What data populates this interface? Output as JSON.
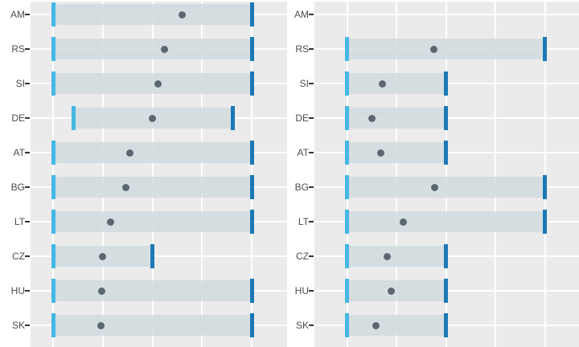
{
  "chart_data": {
    "type": "bar",
    "variant": "dumbbell-range",
    "orientation": "horizontal",
    "facets": 2,
    "categories": [
      "AM",
      "RS",
      "SI",
      "DE",
      "AT",
      "BG",
      "LT",
      "CZ",
      "HU",
      "SK"
    ],
    "axis": {
      "gridline_values": [
        0,
        25,
        50,
        75,
        100
      ],
      "range": [
        0,
        100
      ],
      "tick_labels_visible": false,
      "grid": "on",
      "note": "x-axis tick labels are cropped out of the screenshot; values estimated from gridlines"
    },
    "panels": [
      {
        "name": "left-facet",
        "rows": [
          {
            "category": "AM",
            "low": 0,
            "high": 100,
            "dot": 65
          },
          {
            "category": "RS",
            "low": 0,
            "high": 100,
            "dot": 56
          },
          {
            "category": "SI",
            "low": 0,
            "high": 100,
            "dot": 53
          },
          {
            "category": "DE",
            "low": 10.5,
            "high": 90.5,
            "dot": 50
          },
          {
            "category": "AT",
            "low": 0,
            "high": 100,
            "dot": 38.5
          },
          {
            "category": "BG",
            "low": 0,
            "high": 100,
            "dot": 36.5
          },
          {
            "category": "LT",
            "low": 0,
            "high": 100,
            "dot": 29
          },
          {
            "category": "CZ",
            "low": 0,
            "high": 50,
            "dot": 25
          },
          {
            "category": "HU",
            "low": 0,
            "high": 100,
            "dot": 24.5
          },
          {
            "category": "SK",
            "low": 0,
            "high": 100,
            "dot": 24
          }
        ]
      },
      {
        "name": "right-facet",
        "rows": [
          {
            "category": "AM",
            "low": null,
            "high": null,
            "dot": null
          },
          {
            "category": "RS",
            "low": 0,
            "high": 100,
            "dot": 44
          },
          {
            "category": "SI",
            "low": 0,
            "high": 50,
            "dot": 18
          },
          {
            "category": "DE",
            "low": 0,
            "high": 50,
            "dot": 12.5
          },
          {
            "category": "AT",
            "low": 0,
            "high": 50,
            "dot": 17
          },
          {
            "category": "BG",
            "low": 0,
            "high": 100,
            "dot": 44.5
          },
          {
            "category": "LT",
            "low": 0,
            "high": 100,
            "dot": 28.5
          },
          {
            "category": "CZ",
            "low": 0,
            "high": 50,
            "dot": 20.5
          },
          {
            "category": "HU",
            "low": 0,
            "high": 50,
            "dot": 22.5
          },
          {
            "category": "SK",
            "low": 0,
            "high": 50,
            "dot": 14.5
          }
        ]
      }
    ],
    "colors": {
      "panel_background": "#ebebeb",
      "gridline": "#ffffff",
      "range_bar": "rgba(207,217,222,0.82)",
      "start_tick": "#44b8e4",
      "end_tick": "#1b79b5",
      "dot": "#5b6872",
      "axis_label": "#4d4d4d",
      "axis_tick_mark": "#333333"
    }
  }
}
